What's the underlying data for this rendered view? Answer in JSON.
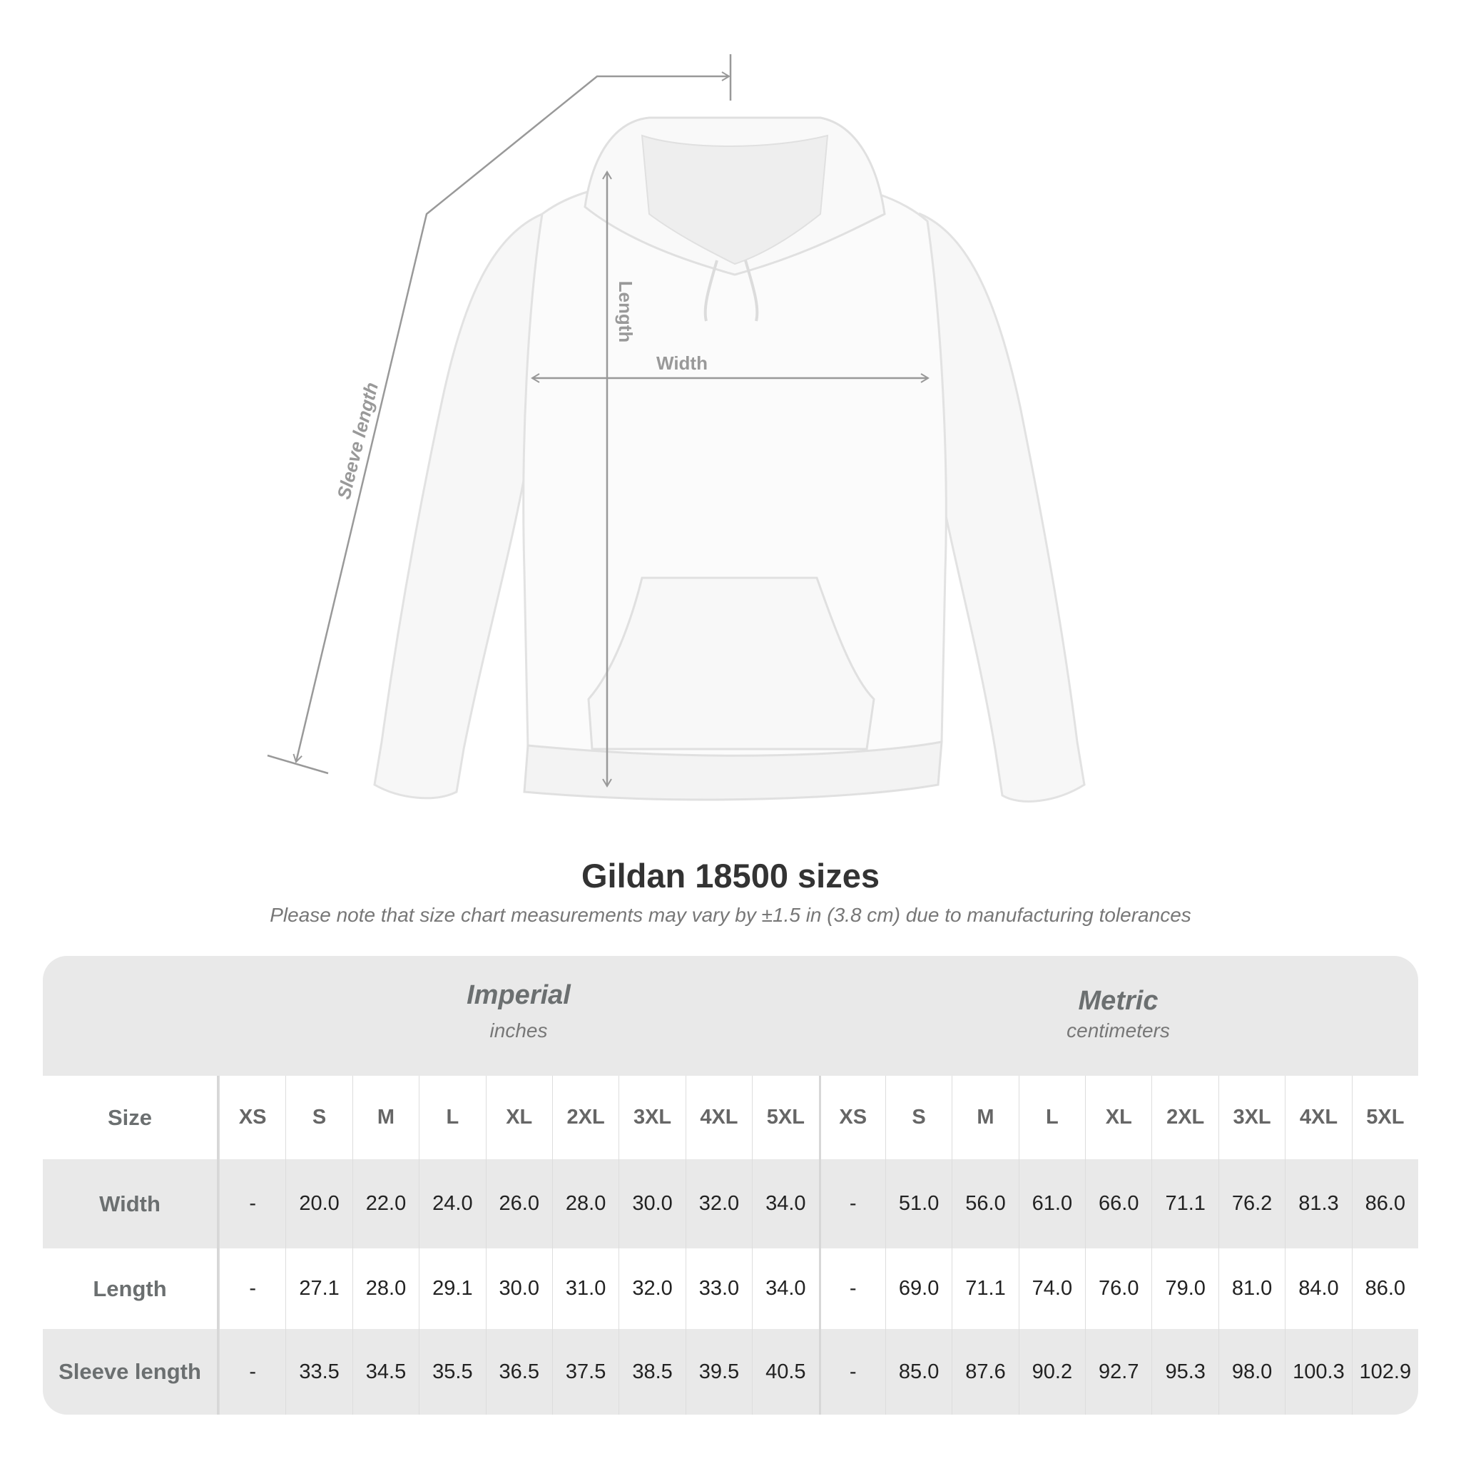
{
  "illustration": {
    "labels": {
      "length": "Length",
      "width": "Width",
      "sleeve_length": "Sleeve length"
    },
    "line_color": "#999999"
  },
  "title": "Gildan 18500 sizes",
  "note": "Please note that size chart measurements may vary by ±1.5 in (3.8 cm) due to manufacturing tolerances",
  "table": {
    "imperial": {
      "title": "Imperial",
      "unit": "inches"
    },
    "metric": {
      "title": "Metric",
      "unit": "centimeters"
    },
    "size_label": "Size",
    "sizes": [
      "XS",
      "S",
      "M",
      "L",
      "XL",
      "2XL",
      "3XL",
      "4XL",
      "5XL"
    ],
    "rows": [
      {
        "label": "Width",
        "imperial": [
          "-",
          "20.0",
          "22.0",
          "24.0",
          "26.0",
          "28.0",
          "30.0",
          "32.0",
          "34.0"
        ],
        "metric": [
          "-",
          "51.0",
          "56.0",
          "61.0",
          "66.0",
          "71.1",
          "76.2",
          "81.3",
          "86.0"
        ]
      },
      {
        "label": "Length",
        "imperial": [
          "-",
          "27.1",
          "28.0",
          "29.1",
          "30.0",
          "31.0",
          "32.0",
          "33.0",
          "34.0"
        ],
        "metric": [
          "-",
          "69.0",
          "71.1",
          "74.0",
          "76.0",
          "79.0",
          "81.0",
          "84.0",
          "86.0"
        ]
      },
      {
        "label": "Sleeve length",
        "imperial": [
          "-",
          "33.5",
          "34.5",
          "35.5",
          "36.5",
          "37.5",
          "38.5",
          "39.5",
          "40.5"
        ],
        "metric": [
          "-",
          "85.0",
          "87.6",
          "90.2",
          "92.7",
          "95.3",
          "98.0",
          "100.3",
          "102.9"
        ]
      }
    ]
  }
}
